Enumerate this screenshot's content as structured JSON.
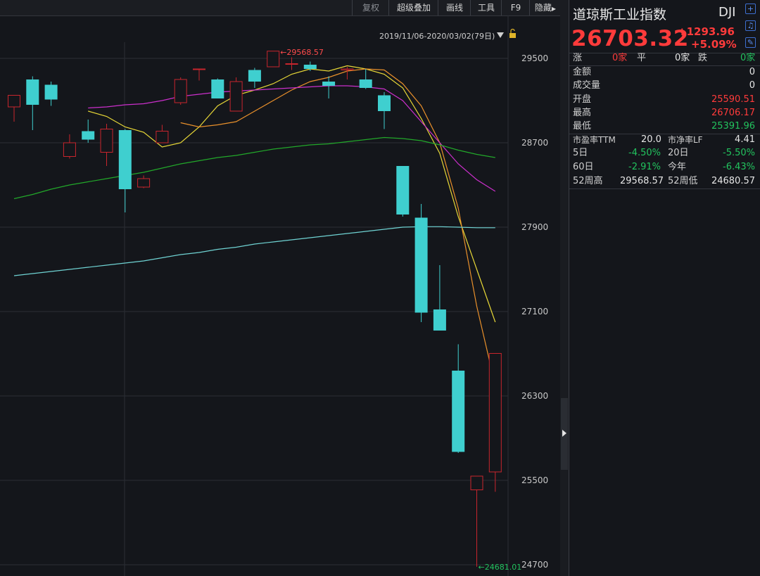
{
  "toolbar": {
    "items": [
      "复权",
      "超级叠加",
      "画线",
      "工具",
      "F9",
      "隐藏"
    ]
  },
  "chart_range_label": "2019/11/06-2020/03/02(79日)",
  "chart_data": {
    "type": "candlestick",
    "y_ticks": [
      29500,
      28700,
      27900,
      27100,
      26300,
      25500,
      24700
    ],
    "ylim": [
      24680,
      29650
    ],
    "up_color": "#c8252d",
    "down_color": "#3fcfcf",
    "candles": [
      {
        "o": 29040,
        "h": 29120,
        "l": 28900,
        "c": 29150
      },
      {
        "o": 29300,
        "h": 29330,
        "l": 28820,
        "c": 29060
      },
      {
        "o": 29250,
        "h": 29280,
        "l": 29050,
        "c": 29110
      },
      {
        "o": 28570,
        "h": 28780,
        "l": 28550,
        "c": 28700
      },
      {
        "o": 28810,
        "h": 28920,
        "l": 28700,
        "c": 28730
      },
      {
        "o": 28610,
        "h": 28880,
        "l": 28480,
        "c": 28830
      },
      {
        "o": 28820,
        "h": 28830,
        "l": 28040,
        "c": 28260
      },
      {
        "o": 28280,
        "h": 28390,
        "l": 28270,
        "c": 28360
      },
      {
        "o": 28700,
        "h": 28870,
        "l": 28700,
        "c": 28810
      },
      {
        "o": 29080,
        "h": 29320,
        "l": 29060,
        "c": 29300
      },
      {
        "o": 29400,
        "h": 29400,
        "l": 29290,
        "c": 29400
      },
      {
        "o": 29300,
        "h": 29310,
        "l": 29150,
        "c": 29120
      },
      {
        "o": 29000,
        "h": 29320,
        "l": 29000,
        "c": 29280
      },
      {
        "o": 29390,
        "h": 29410,
        "l": 29220,
        "c": 29280
      },
      {
        "o": 29420,
        "h": 29560,
        "l": 29420,
        "c": 29568.57
      },
      {
        "o": 29450,
        "h": 29510,
        "l": 29390,
        "c": 29450
      },
      {
        "o": 29440,
        "h": 29470,
        "l": 29380,
        "c": 29400
      },
      {
        "o": 29280,
        "h": 29330,
        "l": 29120,
        "c": 29240
      },
      {
        "o": 29390,
        "h": 29420,
        "l": 29300,
        "c": 29400
      },
      {
        "o": 29300,
        "h": 29400,
        "l": 29210,
        "c": 29220
      },
      {
        "o": 29150,
        "h": 29180,
        "l": 28830,
        "c": 29000
      },
      {
        "o": 28480,
        "h": 28480,
        "l": 28000,
        "c": 28020
      },
      {
        "o": 27990,
        "h": 28120,
        "l": 27000,
        "c": 27090
      },
      {
        "o": 27120,
        "h": 27540,
        "l": 26920,
        "c": 26920
      },
      {
        "o": 26540,
        "h": 26790,
        "l": 25760,
        "c": 25770
      },
      {
        "o": 25410,
        "h": 25530,
        "l": 24681.01,
        "c": 25540
      },
      {
        "o": 25580,
        "h": 26706.17,
        "l": 25391.96,
        "c": 26703.32
      }
    ],
    "annotations": {
      "high": "29568.57",
      "low": "24681.01"
    },
    "ma": [
      {
        "name": "MA5",
        "color": "#e8d837",
        "values": [
          null,
          null,
          null,
          null,
          29000,
          28950,
          28850,
          28800,
          28660,
          28700,
          28850,
          29050,
          29150,
          29200,
          29260,
          29350,
          29400,
          29380,
          29430,
          29400,
          29350,
          29220,
          28930,
          28600,
          28000,
          27500,
          27000
        ]
      },
      {
        "name": "MA10",
        "color": "#e9902b",
        "values": [
          null,
          null,
          null,
          null,
          null,
          null,
          null,
          null,
          null,
          28890,
          28850,
          28870,
          28900,
          29000,
          29100,
          29200,
          29280,
          29320,
          29380,
          29400,
          29390,
          29260,
          29050,
          28700,
          28080,
          27150,
          26400
        ]
      },
      {
        "name": "MA20",
        "color": "#cc2fcc",
        "values": [
          null,
          null,
          null,
          null,
          29030,
          29040,
          29060,
          29070,
          29100,
          29140,
          29160,
          29180,
          29190,
          29200,
          29210,
          29220,
          29230,
          29240,
          29240,
          29230,
          29210,
          29100,
          28900,
          28700,
          28500,
          28350,
          28240
        ]
      },
      {
        "name": "MA60",
        "color": "#22a82a",
        "values": [
          28170,
          28210,
          28260,
          28300,
          28330,
          28360,
          28390,
          28420,
          28460,
          28500,
          28530,
          28560,
          28580,
          28610,
          28640,
          28660,
          28680,
          28690,
          28710,
          28730,
          28750,
          28740,
          28720,
          28680,
          28630,
          28590,
          28560
        ]
      },
      {
        "name": "MA120",
        "color": "#6fd3d3",
        "values": [
          27440,
          27460,
          27480,
          27500,
          27520,
          27540,
          27560,
          27580,
          27610,
          27640,
          27660,
          27690,
          27710,
          27740,
          27760,
          27780,
          27800,
          27820,
          27840,
          27860,
          27880,
          27900,
          27905,
          27905,
          27900,
          27895,
          27895
        ]
      }
    ]
  },
  "panel": {
    "name": "道琼斯工业指数",
    "code": "DJI",
    "icons": [
      "plus-icon",
      "bell-icon",
      "edit-icon"
    ],
    "price": "26703.32",
    "change": "+1293.96",
    "change_pct": "+5.09%",
    "counts": {
      "up_label": "涨",
      "up_value": "0家",
      "flat_label": "平",
      "flat_value": "0家",
      "down_label": "跌",
      "down_value": "0家"
    },
    "amount_label": "金额",
    "amount_value": "0",
    "volume_label": "成交量",
    "volume_value": "0",
    "open_label": "开盘",
    "open_value": "25590.51",
    "high_label": "最高",
    "high_value": "26706.17",
    "low_label": "最低",
    "low_value": "25391.96",
    "pe_label": "市盈率TTM",
    "pe_value": "20.0",
    "pb_label": "市净率LF",
    "pb_value": "4.41",
    "d5_label": "5日",
    "d5_value": "-4.50%",
    "d20_label": "20日",
    "d20_value": "-5.50%",
    "d60_label": "60日",
    "d60_value": "-2.91%",
    "ytd_label": "今年",
    "ytd_value": "-6.43%",
    "w52h_label": "52周高",
    "w52h_value": "29568.57",
    "w52l_label": "52周低",
    "w52l_value": "24680.57"
  }
}
